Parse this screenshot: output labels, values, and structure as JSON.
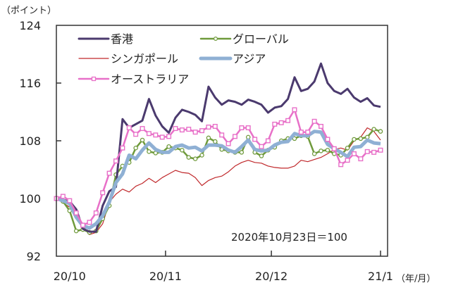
{
  "chart_data": {
    "type": "line",
    "ylabel": "（ポイント）",
    "xunit": "（年/月）",
    "annotation": "2020年10月23日＝100",
    "ylim": [
      92,
      124
    ],
    "yticks": [
      92,
      100,
      108,
      116,
      124
    ],
    "xlim": [
      0,
      50
    ],
    "xticks": [
      {
        "label": "20/10",
        "at": 2
      },
      {
        "label": "20/11",
        "at": 16.5,
        "mark": true
      },
      {
        "label": "20/12",
        "at": 32.5,
        "mark": true
      },
      {
        "label": "21/1",
        "at": 49,
        "mark": true
      }
    ],
    "grid": false,
    "legend_position": "top-left",
    "series": [
      {
        "name": "香港",
        "color": "#4b3a6e",
        "width": 3,
        "marker": "none",
        "values": [
          100,
          99.8,
          99.6,
          98.5,
          95.8,
          95.4,
          95.4,
          99,
          101,
          101.6,
          111,
          109.8,
          110.3,
          110.8,
          113.8,
          111.5,
          110,
          109.1,
          111.2,
          112.3,
          112,
          111.6,
          110.7,
          115.5,
          114,
          113,
          113.6,
          113.4,
          113,
          113.7,
          113.4,
          113,
          111.9,
          112.6,
          112.8,
          113.8,
          116.8,
          114.9,
          115.2,
          116.2,
          118.7,
          116,
          114.9,
          114.5,
          115.2,
          114,
          113.4,
          113.9,
          112.9,
          112.7
        ]
      },
      {
        "name": "グローバル",
        "color": "#6f9a3b",
        "width": 2.5,
        "marker": "circle",
        "values": [
          100,
          99.6,
          98.3,
          95.5,
          95.7,
          95.3,
          95.5,
          97.2,
          99,
          103.3,
          104.5,
          105,
          107,
          108.1,
          106.5,
          106.3,
          106.4,
          107.2,
          107,
          106.7,
          105.7,
          105.5,
          106,
          108.4,
          107.9,
          106.8,
          106.6,
          106.4,
          106.4,
          108.5,
          106.4,
          105.9,
          106.7,
          107.1,
          108,
          108.3,
          108.3,
          108.7,
          108.6,
          106.2,
          106.6,
          106.7,
          106.2,
          106,
          107,
          108.2,
          108.3,
          108.5,
          109.6,
          109.3
        ]
      },
      {
        "name": "シンガポール",
        "color": "#c0282b",
        "width": 1.2,
        "marker": "none",
        "values": [
          100,
          99.4,
          98.8,
          97.8,
          96.2,
          95,
          95.3,
          96.5,
          99.5,
          100.6,
          101.3,
          100.9,
          101.7,
          102.1,
          102.8,
          102.2,
          102.9,
          103.4,
          103.9,
          103.6,
          103.5,
          102.9,
          101.8,
          102.5,
          102.9,
          103.1,
          103.7,
          104.5,
          105,
          105.3,
          105,
          104.9,
          104.5,
          104.3,
          104.2,
          104.2,
          104.5,
          105.3,
          105.1,
          105.4,
          105.7,
          106.2,
          106.8,
          107,
          106.7,
          108,
          108.5,
          109.8,
          109.3,
          108.1
        ]
      },
      {
        "name": "アジア",
        "color": "#8fb0d4",
        "width": 5,
        "marker": "none",
        "values": [
          100,
          99.7,
          99.3,
          97.4,
          96.2,
          95.9,
          96.5,
          97.6,
          99.5,
          102.2,
          103.4,
          106,
          105.5,
          106.7,
          107.7,
          106.8,
          106.4,
          106.4,
          107.2,
          107.4,
          107,
          107.1,
          106.6,
          107.4,
          107.4,
          107.3,
          106.7,
          106.4,
          107.2,
          108.1,
          106.8,
          106.6,
          106.7,
          107.4,
          107.8,
          107.9,
          109,
          108.7,
          108.7,
          109.3,
          109.2,
          107.5,
          106.9,
          106.4,
          105.8,
          107.1,
          107.2,
          108.1,
          107.7,
          107.6
        ]
      },
      {
        "name": "オーストラリア",
        "color": "#e870c8",
        "width": 2.5,
        "marker": "square",
        "values": [
          100,
          100.3,
          99.7,
          98,
          96.3,
          96.7,
          98,
          100.8,
          103.5,
          105.2,
          107,
          109.8,
          108.9,
          109.7,
          109,
          108.8,
          108.5,
          108.6,
          109.7,
          109.5,
          109.6,
          109.2,
          109.4,
          109.9,
          110,
          108.8,
          107.6,
          108.6,
          109.8,
          109.8,
          108.2,
          107.2,
          108,
          110.3,
          110.5,
          110.8,
          112.3,
          109.2,
          109.2,
          110.7,
          110,
          108.2,
          106.9,
          104.7,
          105.3,
          106.2,
          105.5,
          106.5,
          106.4,
          106.7
        ]
      }
    ]
  }
}
